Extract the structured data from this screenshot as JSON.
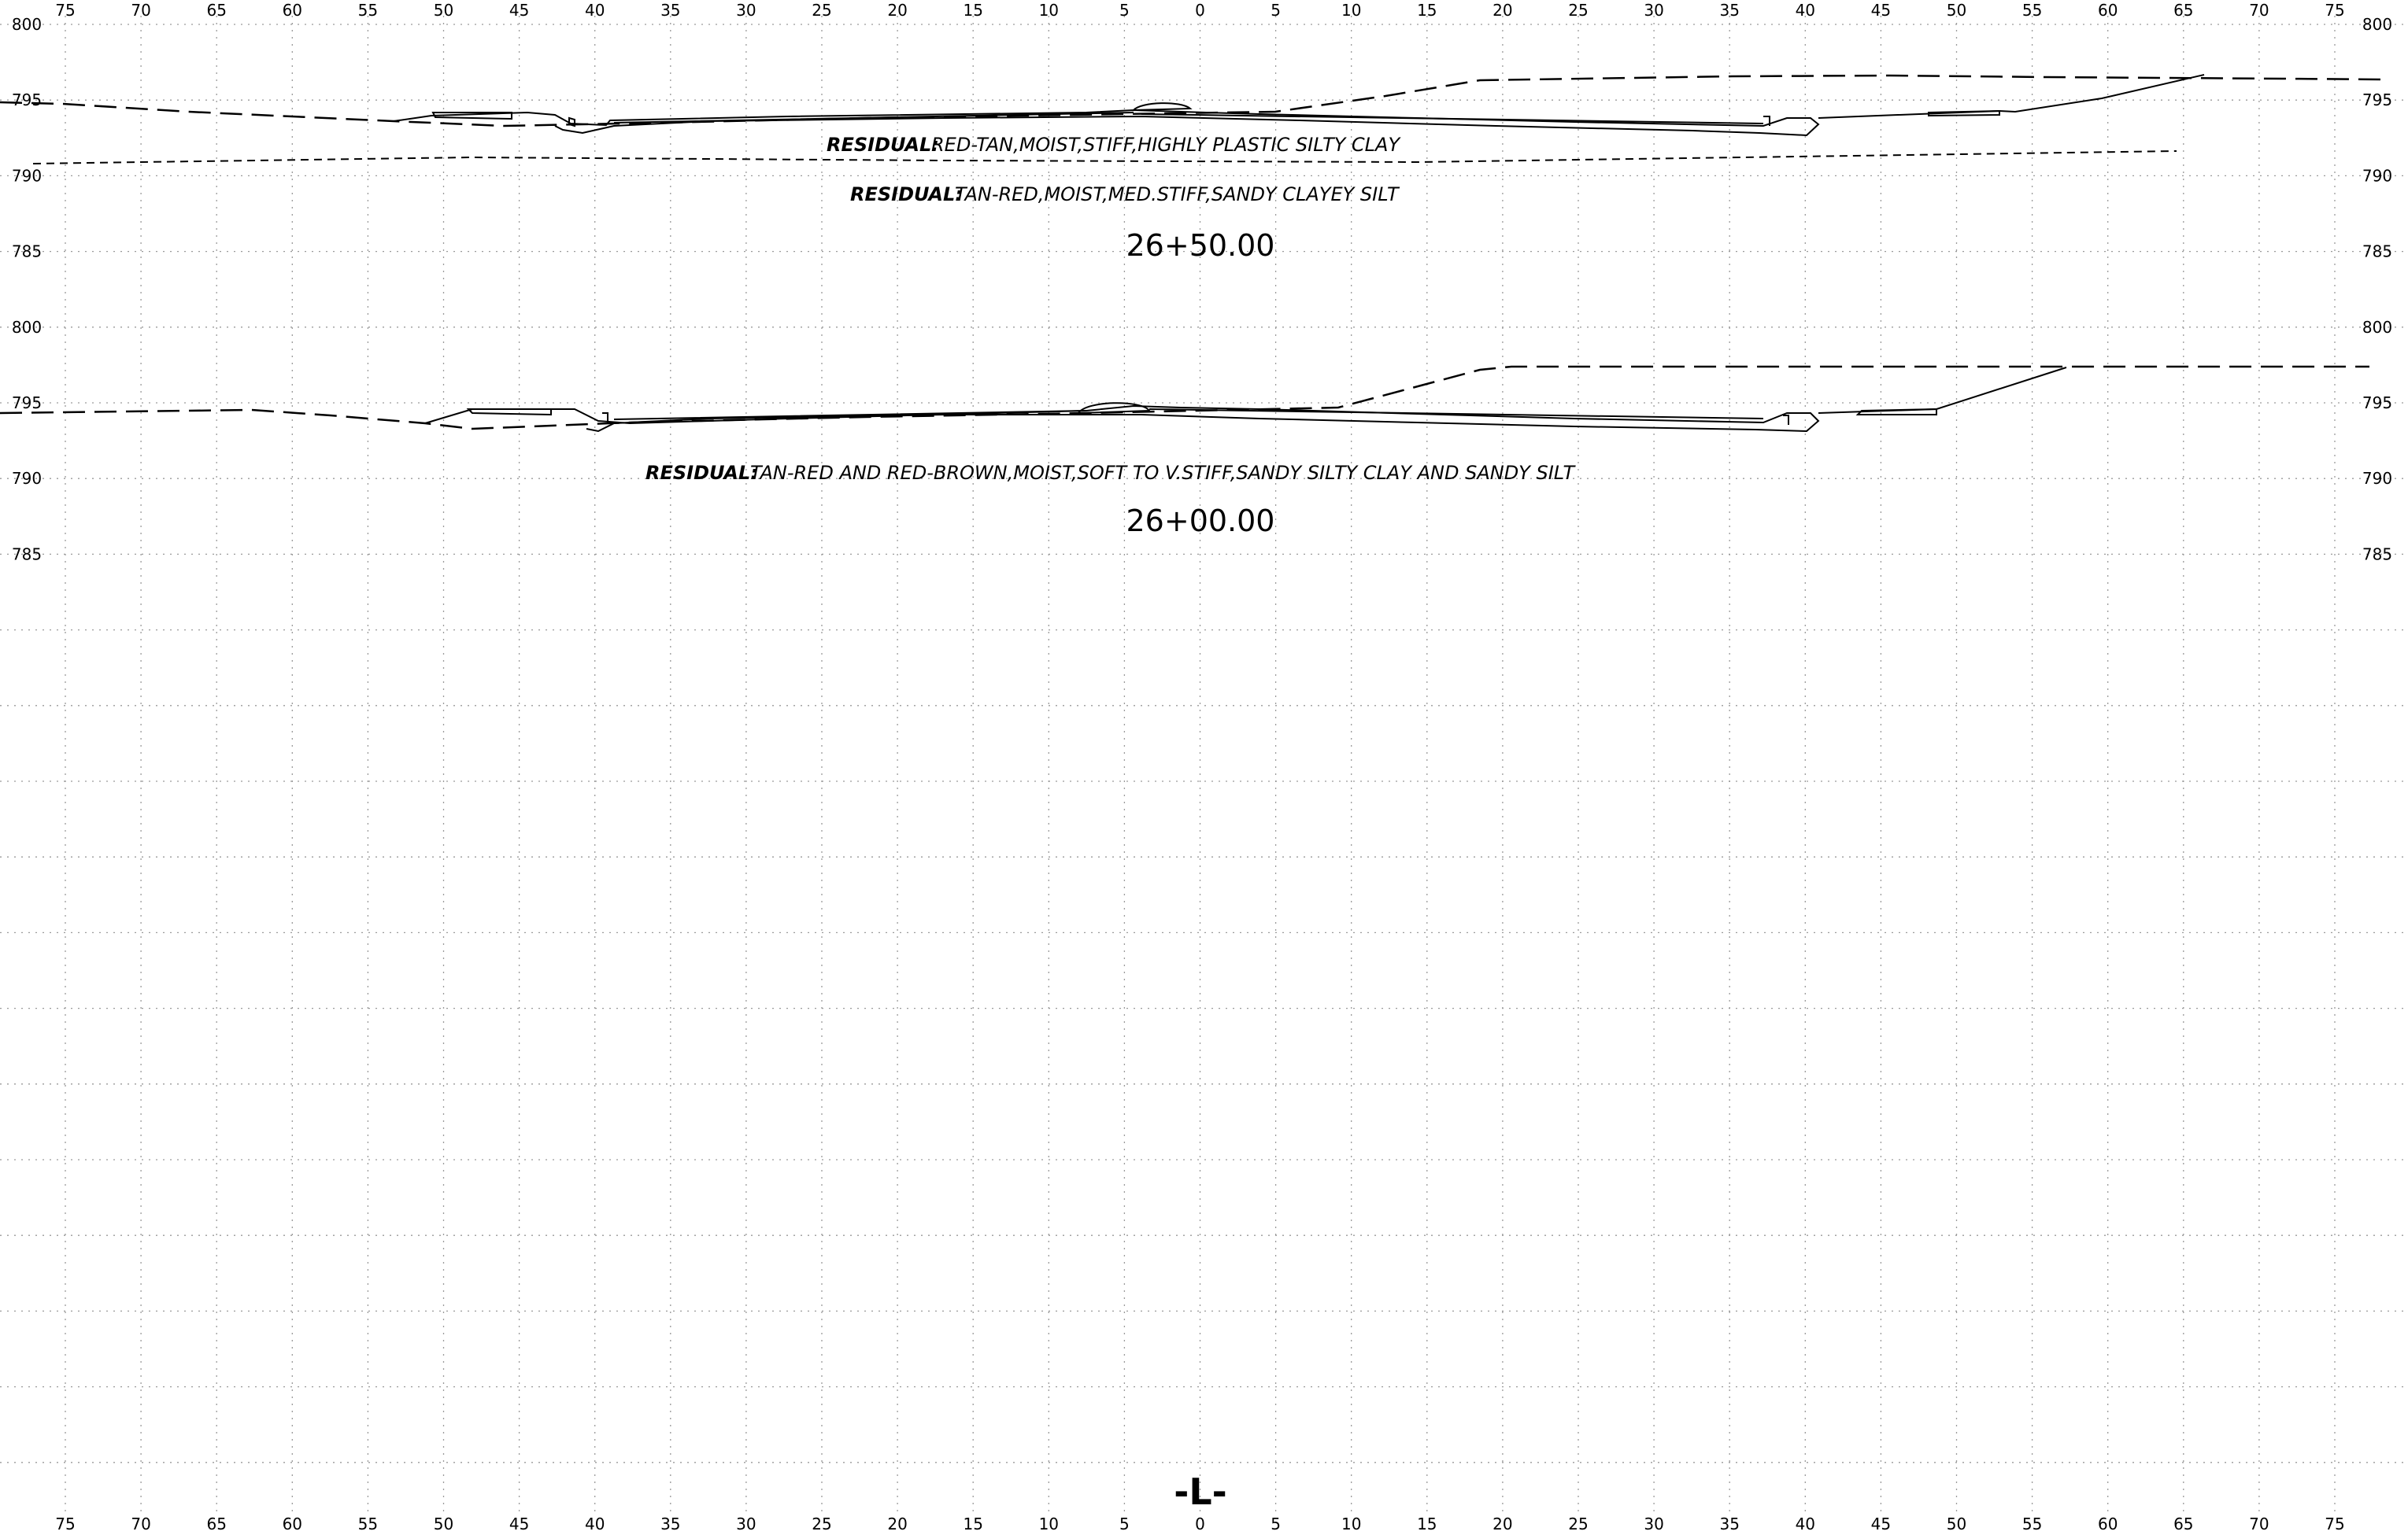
{
  "offset_axis": {
    "labels": [
      "75",
      "70",
      "65",
      "60",
      "55",
      "50",
      "45",
      "40",
      "35",
      "30",
      "25",
      "20",
      "15",
      "10",
      "5",
      "0",
      "5",
      "10",
      "15",
      "20",
      "25",
      "30",
      "35",
      "40",
      "45",
      "50",
      "55",
      "60",
      "65",
      "70",
      "75"
    ]
  },
  "centerline_label": "-L-",
  "sections": [
    {
      "station": "26+50.00",
      "elevation_labels": [
        "800",
        "795",
        "790",
        "785"
      ],
      "soil_layers": [
        {
          "head": "RESIDUAL:",
          "desc": "RED-TAN,MOIST,STIFF,HIGHLY PLASTIC SILTY CLAY"
        },
        {
          "head": "RESIDUAL:",
          "desc": "TAN-RED,MOIST,MED.STIFF,SANDY CLAYEY SILT"
        }
      ]
    },
    {
      "station": "26+00.00",
      "elevation_labels": [
        "800",
        "795",
        "790",
        "785"
      ],
      "soil_layers": [
        {
          "head": "RESIDUAL:",
          "desc": "TAN-RED AND RED-BROWN,MOIST,SOFT TO V.STIFF,SANDY SILTY CLAY AND SANDY SILT"
        }
      ]
    }
  ],
  "colors": {
    "grid": "#9a9a9a",
    "line": "#000000",
    "background": "#ffffff"
  }
}
